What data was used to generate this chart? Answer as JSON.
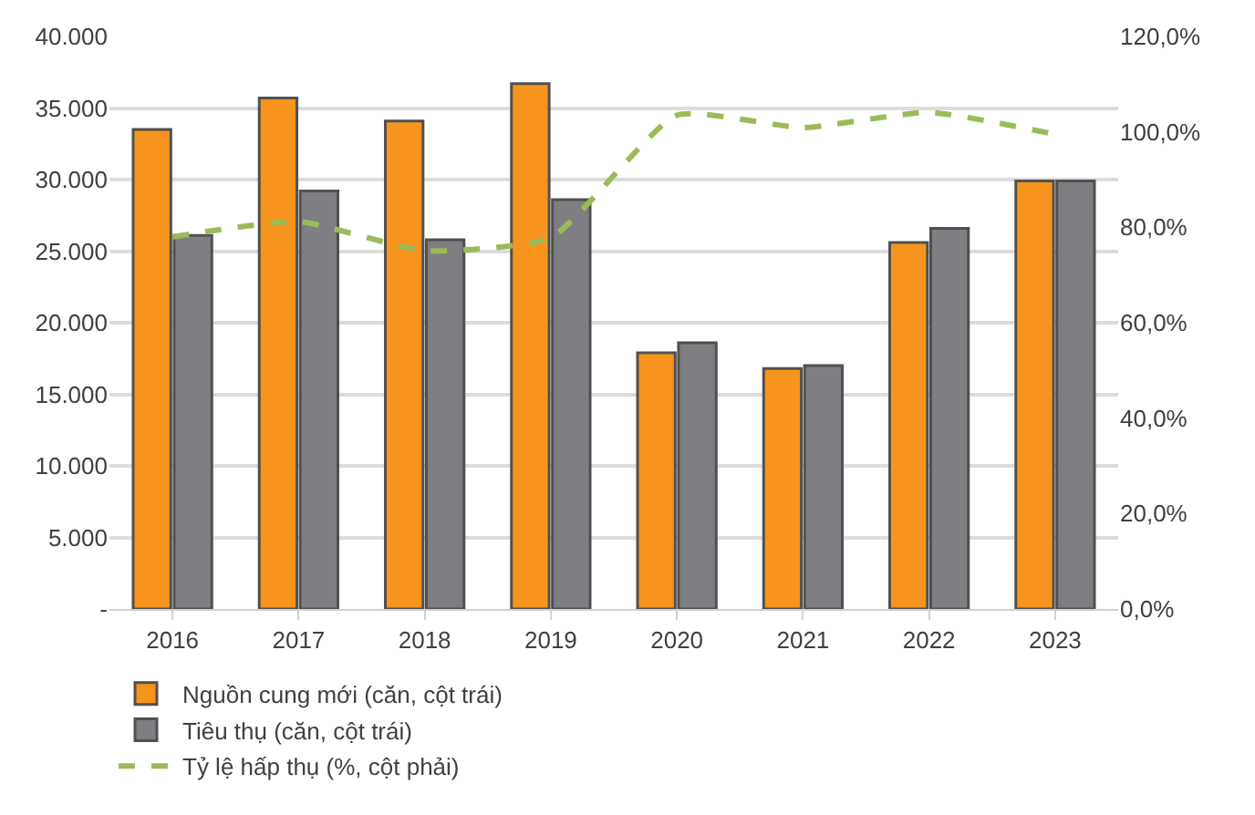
{
  "chart_data": {
    "type": "bar",
    "categories": [
      "2016",
      "2017",
      "2018",
      "2019",
      "2020",
      "2021",
      "2022",
      "2023"
    ],
    "series": [
      {
        "name": "Nguồn cung mới (căn, cột trái)",
        "color": "#f7941d",
        "values": [
          33500,
          35700,
          34100,
          36700,
          17900,
          16800,
          25600,
          29900
        ]
      },
      {
        "name": "Tiêu thụ (căn, cột trái)",
        "color": "#7f7f83",
        "values": [
          26100,
          29200,
          25800,
          28600,
          18600,
          17000,
          26600,
          29900
        ]
      },
      {
        "name": "Tỷ lệ hấp thụ (%, cột phải)",
        "type": "line",
        "axis": "y2",
        "color": "#9bbb59",
        "line_style": "dashed",
        "values": [
          78.0,
          81.2,
          75.1,
          77.8,
          103.5,
          100.9,
          104.1,
          99.5
        ]
      }
    ],
    "ylim": [
      0,
      40000
    ],
    "yticks": [
      {
        "value": 0,
        "label": "-"
      },
      {
        "value": 5000,
        "label": "5.000"
      },
      {
        "value": 10000,
        "label": "10.000"
      },
      {
        "value": 15000,
        "label": "15.000"
      },
      {
        "value": 20000,
        "label": "20.000"
      },
      {
        "value": 25000,
        "label": "25.000"
      },
      {
        "value": 30000,
        "label": "30.000"
      },
      {
        "value": 35000,
        "label": "35.000"
      },
      {
        "value": 40000,
        "label": "40.000"
      }
    ],
    "y2lim": [
      0,
      120
    ],
    "y2ticks": [
      {
        "value": 0,
        "label": "0,0%"
      },
      {
        "value": 20,
        "label": "20,0%"
      },
      {
        "value": 40,
        "label": "40,0%"
      },
      {
        "value": 60,
        "label": "60,0%"
      },
      {
        "value": 80,
        "label": "80,0%"
      },
      {
        "value": 100,
        "label": "100,0%"
      },
      {
        "value": 120,
        "label": "120,0%"
      }
    ],
    "grid": "y",
    "legend": "bottom"
  }
}
